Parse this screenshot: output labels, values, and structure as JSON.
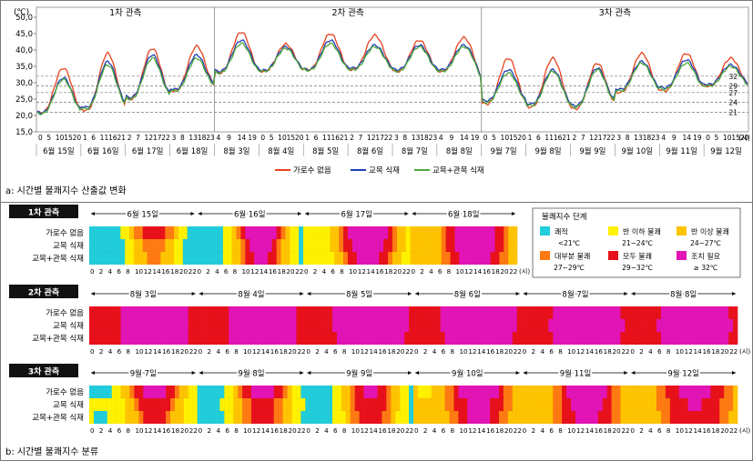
{
  "panel_a": {
    "caption": "a: 시간별 불쾌지수 산출값 변화",
    "unit": "(℃)",
    "unit_x": "(시)",
    "periods": [
      {
        "label": "1차 관측",
        "days": [
          "6월 15일",
          "6월 16일",
          "6월 17일",
          "6월 18일"
        ]
      },
      {
        "label": "2차 관측",
        "days": [
          "8월 3일",
          "8월 4일",
          "8월 5일",
          "8월 6일",
          "8월 7일",
          "8월 8일"
        ]
      },
      {
        "label": "3차 관측",
        "days": [
          "9월 7일",
          "9월 8일",
          "9월 9일",
          "9월 10일",
          "9월 11일",
          "9월 12일"
        ]
      }
    ],
    "hour_ticks": [
      [
        "0",
        "5",
        "10",
        "15",
        "20"
      ],
      [
        "1",
        "6",
        "11",
        "16",
        "21"
      ],
      [
        "2",
        "7",
        "12",
        "17",
        "22"
      ],
      [
        "3",
        "8",
        "13",
        "18",
        "23"
      ],
      [
        "4",
        "9",
        "14",
        "19"
      ]
    ]
  },
  "chart_data": {
    "type": "line",
    "ylim": [
      15,
      50
    ],
    "yticks": [
      "15,0",
      "20,0",
      "25,0",
      "30,0",
      "35,0",
      "40,0",
      "45,0",
      "50,0"
    ],
    "reference_lines": [
      21,
      24,
      27,
      29,
      32
    ],
    "series": [
      {
        "name": "가로수 없음",
        "color": "#e8431f",
        "daily": [
          {
            "min": 20.8,
            "max": 34.5
          },
          {
            "min": 21.5,
            "max": 39.0
          },
          {
            "min": 25.0,
            "max": 40.5
          },
          {
            "min": 27.5,
            "max": 41.2
          },
          {
            "min": 33.0,
            "max": 45.5
          },
          {
            "min": 33.5,
            "max": 41.8
          },
          {
            "min": 34.0,
            "max": 45.0
          },
          {
            "min": 34.0,
            "max": 44.5
          },
          {
            "min": 33.5,
            "max": 43.0
          },
          {
            "min": 33.5,
            "max": 43.8
          },
          {
            "min": 23.5,
            "max": 37.5
          },
          {
            "min": 22.5,
            "max": 37.5
          },
          {
            "min": 22.0,
            "max": 36.0
          },
          {
            "min": 27.0,
            "max": 39.0
          },
          {
            "min": 27.5,
            "max": 39.0
          },
          {
            "min": 29.0,
            "max": 37.5
          }
        ]
      },
      {
        "name": "교목 식재",
        "color": "#1f3fb8",
        "daily": [
          {
            "min": 20.8,
            "max": 31.5
          },
          {
            "min": 22.5,
            "max": 36.5
          },
          {
            "min": 25.5,
            "max": 38.5
          },
          {
            "min": 28.0,
            "max": 38.5
          },
          {
            "min": 33.5,
            "max": 43.0
          },
          {
            "min": 33.8,
            "max": 41.0
          },
          {
            "min": 34.0,
            "max": 43.0
          },
          {
            "min": 34.5,
            "max": 41.5
          },
          {
            "min": 34.0,
            "max": 41.5
          },
          {
            "min": 34.0,
            "max": 41.5
          },
          {
            "min": 24.5,
            "max": 34.0
          },
          {
            "min": 23.5,
            "max": 34.0
          },
          {
            "min": 23.0,
            "max": 34.5
          },
          {
            "min": 28.0,
            "max": 36.5
          },
          {
            "min": 28.5,
            "max": 37.0
          },
          {
            "min": 29.5,
            "max": 35.5
          }
        ]
      },
      {
        "name": "교목+관목 식재",
        "color": "#4fa83a",
        "daily": [
          {
            "min": 20.5,
            "max": 31.0
          },
          {
            "min": 22.0,
            "max": 35.5
          },
          {
            "min": 25.0,
            "max": 37.5
          },
          {
            "min": 27.5,
            "max": 37.5
          },
          {
            "min": 33.0,
            "max": 42.0
          },
          {
            "min": 33.5,
            "max": 40.5
          },
          {
            "min": 33.8,
            "max": 42.0
          },
          {
            "min": 34.0,
            "max": 41.0
          },
          {
            "min": 33.5,
            "max": 41.0
          },
          {
            "min": 33.5,
            "max": 41.0
          },
          {
            "min": 24.0,
            "max": 33.0
          },
          {
            "min": 23.0,
            "max": 33.5
          },
          {
            "min": 22.5,
            "max": 34.0
          },
          {
            "min": 27.5,
            "max": 36.0
          },
          {
            "min": 28.0,
            "max": 36.0
          },
          {
            "min": 29.0,
            "max": 35.0
          }
        ]
      }
    ]
  },
  "panel_b": {
    "caption": "b: 시간별 불쾌지수 분류",
    "row_labels": [
      "가로수 없음",
      "교목 식재",
      "교목+관목 식재"
    ],
    "hour_ticks": [
      "0",
      "2",
      "4",
      "6",
      "8",
      "10",
      "12",
      "14",
      "16",
      "18",
      "20",
      "22"
    ],
    "unit_x": "(시)",
    "blocks": [
      {
        "label": "1차 관측",
        "days": [
          "6월 15일",
          "6월 16일",
          "6월 17일",
          "6월 18일"
        ]
      },
      {
        "label": "2차 관측",
        "days": [
          "8월 3일",
          "8월 4일",
          "8월 5일",
          "8월 6일",
          "8월 7일",
          "8월 8일"
        ]
      },
      {
        "label": "3차 관측",
        "days": [
          "9월 7일",
          "9월 8일",
          "9월 9일",
          "9월 10일",
          "9월 11일",
          "9월 12일"
        ]
      }
    ],
    "legend": {
      "title": "불쾌지수 단계",
      "items": [
        {
          "name": "쾌적",
          "range": "<21℃",
          "color": "#21cddb"
        },
        {
          "name": "반 이하 불쾌",
          "range": "21~24℃",
          "color": "#fff200"
        },
        {
          "name": "반 이상 불쾌",
          "range": "24~27℃",
          "color": "#ffc400"
        },
        {
          "name": "대부분 불쾌",
          "range": "27~29℃",
          "color": "#ff7a12"
        },
        {
          "name": "모두 불쾌",
          "range": "29~32℃",
          "color": "#e8111b"
        },
        {
          "name": "조치 필요",
          "range": "≥ 32℃",
          "color": "#e314b6"
        }
      ]
    }
  }
}
